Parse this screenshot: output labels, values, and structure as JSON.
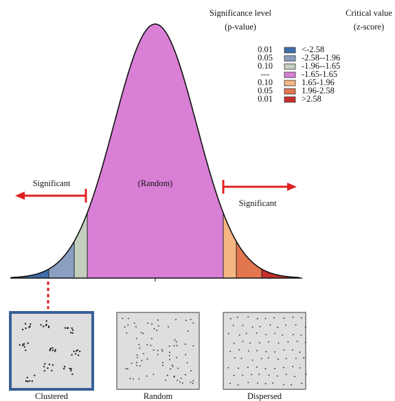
{
  "legend": {
    "significance_header": "Significance level",
    "significance_sub": "(p-value)",
    "critical_header": "Critical value",
    "critical_sub": "(z-score)",
    "rows": [
      {
        "p": "0.01",
        "range": "<-2.58",
        "color": "#3f6ea8"
      },
      {
        "p": "0.05",
        "range": "-2.58--1.96",
        "color": "#8a9fc2"
      },
      {
        "p": "0.10",
        "range": "-1.96--1.65",
        "color": "#c4cfc0"
      },
      {
        "p": "---",
        "range": "-1.65-1.65",
        "color": "#d97fd6"
      },
      {
        "p": "0.10",
        "range": "1.65-1.96",
        "color": "#f5b683"
      },
      {
        "p": "0.05",
        "range": "1.96-2.58",
        "color": "#e2774f"
      },
      {
        "p": "0.01",
        "range": ">2.58",
        "color": "#c8302c"
      }
    ]
  },
  "curve": {
    "left_label": "Significant",
    "center_label": "(Random)",
    "right_label": "Significant"
  },
  "patterns": [
    "Clustered",
    "Random",
    "Dispersed"
  ]
}
